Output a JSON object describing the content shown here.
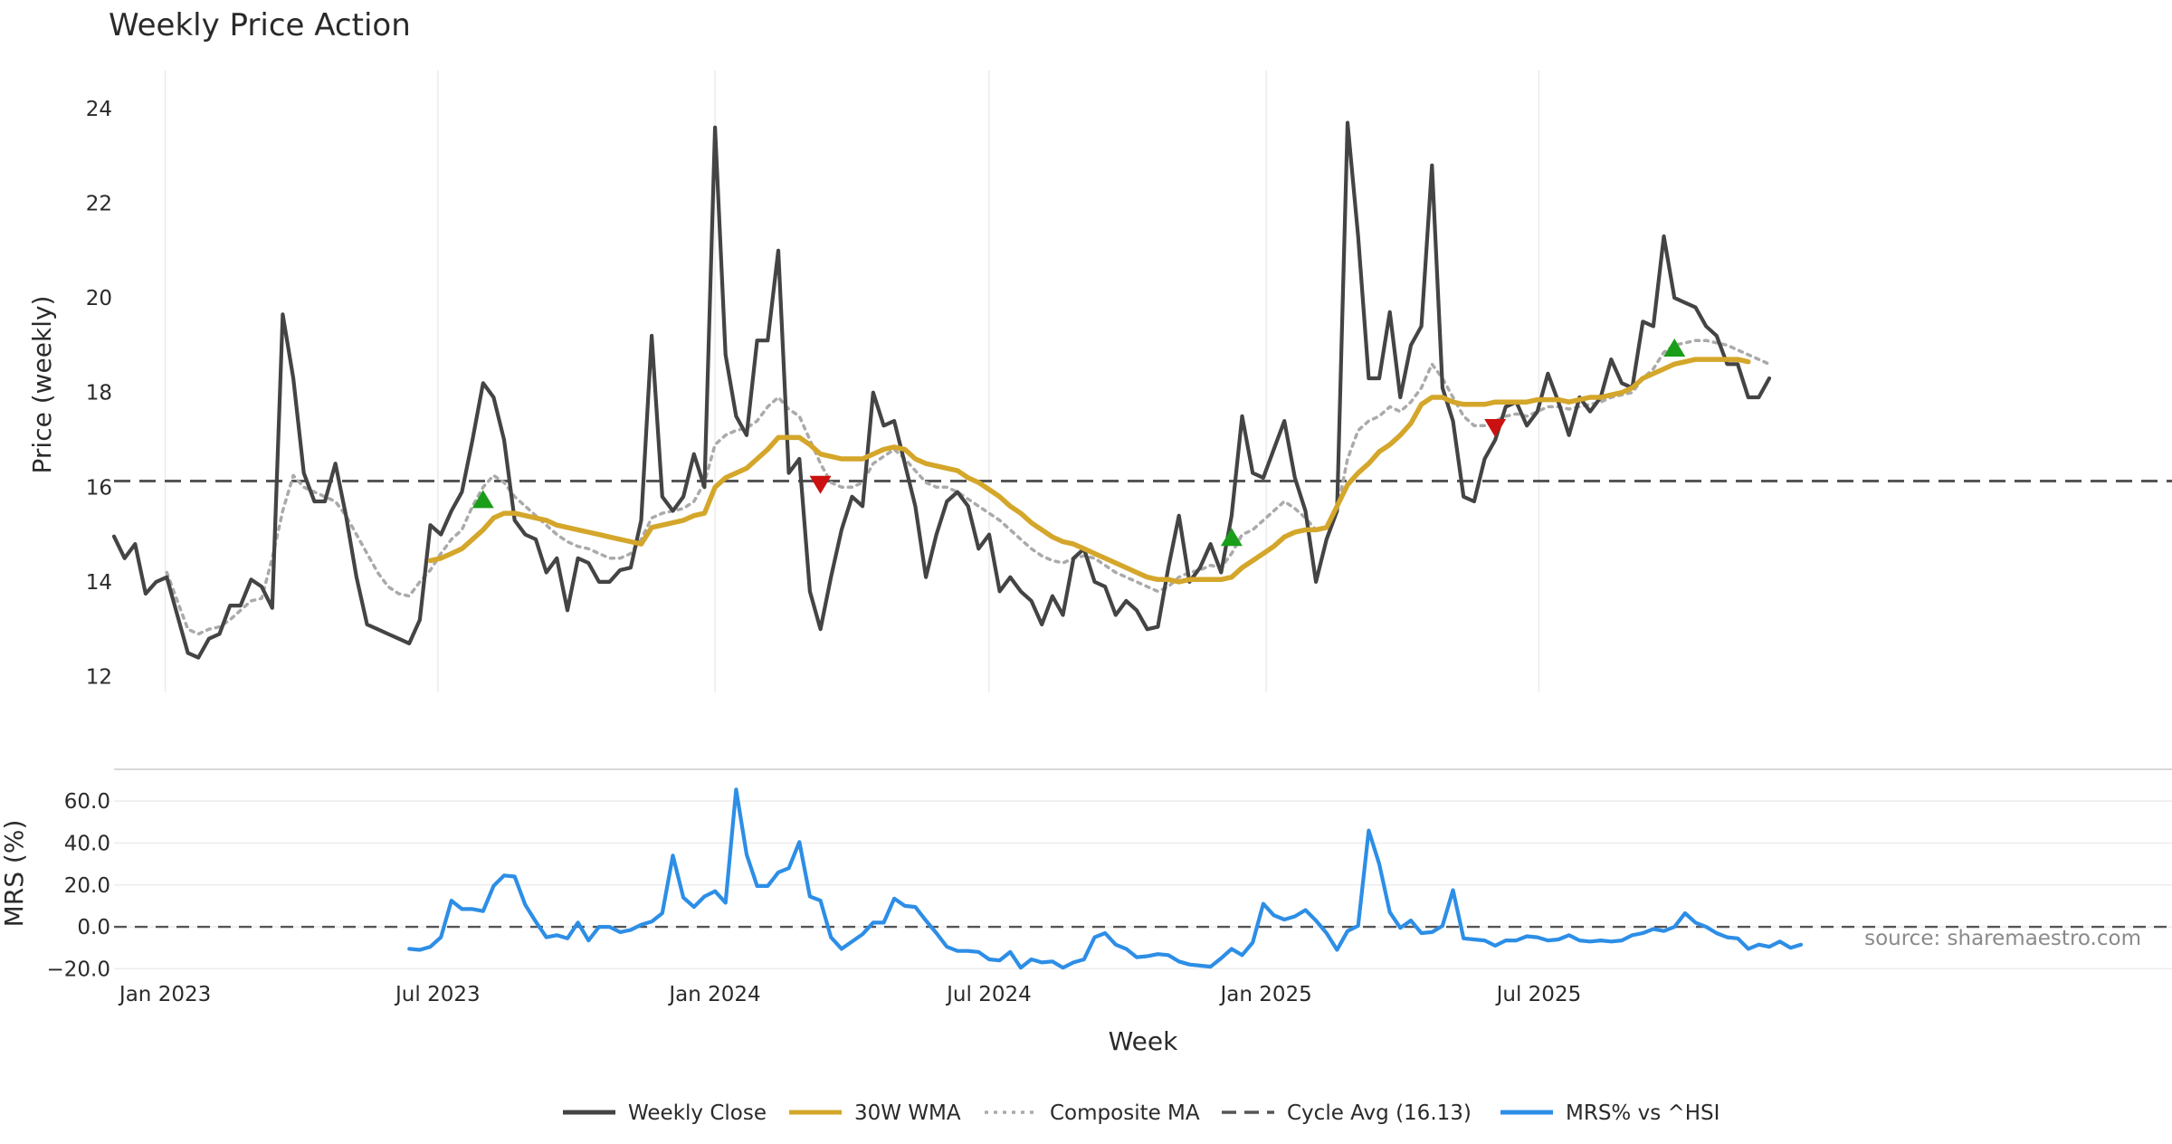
{
  "chart_data": {
    "type": "line",
    "title": "Weekly Price Action",
    "xlabel": "Week",
    "source_note": "source: sharemaestro.com",
    "x_start": "2022-11-28",
    "x_step_days": 7,
    "x_ticks": [
      {
        "date": "2023-01-01",
        "label": "Jan 2023"
      },
      {
        "date": "2023-07-01",
        "label": "Jul 2023"
      },
      {
        "date": "2024-01-01",
        "label": "Jan 2024"
      },
      {
        "date": "2024-07-01",
        "label": "Jul 2024"
      },
      {
        "date": "2025-01-01",
        "label": "Jan 2025"
      },
      {
        "date": "2025-07-01",
        "label": "Jul 2025"
      }
    ],
    "price_panel": {
      "ylabel": "Price (weekly)",
      "ylim": [
        11.8,
        24.4
      ],
      "yticks": [
        12,
        14,
        16,
        18,
        20,
        22,
        24
      ],
      "cycle_avg": 16.13,
      "series": [
        {
          "name": "Weekly Close",
          "color": "#444444",
          "style": "solid",
          "values": [
            14.96,
            14.5,
            14.8,
            13.75,
            14.0,
            14.1,
            13.3,
            12.5,
            12.4,
            12.8,
            12.9,
            13.5,
            13.5,
            14.05,
            13.9,
            13.45,
            19.65,
            18.3,
            16.3,
            15.7,
            15.7,
            16.5,
            15.4,
            14.1,
            13.1,
            13.0,
            12.9,
            12.8,
            12.7,
            13.2,
            15.2,
            15.0,
            15.5,
            15.9,
            17.0,
            18.2,
            17.9,
            17.0,
            15.3,
            15.0,
            14.9,
            14.2,
            14.5,
            13.4,
            14.5,
            14.4,
            14.0,
            14.0,
            14.25,
            14.3,
            15.3,
            19.2,
            15.8,
            15.5,
            15.8,
            16.7,
            16.0,
            23.6,
            18.8,
            17.5,
            17.1,
            19.1,
            19.1,
            21.0,
            16.3,
            16.6,
            13.8,
            13.0,
            14.1,
            15.1,
            15.8,
            15.6,
            18.0,
            17.3,
            17.4,
            16.5,
            15.6,
            14.1,
            15.0,
            15.7,
            15.9,
            15.6,
            14.7,
            15.0,
            13.8,
            14.1,
            13.8,
            13.6,
            13.1,
            13.7,
            13.3,
            14.5,
            14.7,
            14.0,
            13.9,
            13.3,
            13.6,
            13.4,
            13.0,
            13.05,
            14.3,
            15.4,
            14.0,
            14.3,
            14.8,
            14.2,
            15.4,
            17.5,
            16.3,
            16.2,
            16.8,
            17.4,
            16.2,
            15.5,
            14.0,
            14.9,
            15.5,
            23.7,
            21.3,
            18.3,
            18.3,
            19.7,
            17.9,
            19.0,
            19.4,
            22.8,
            18.1,
            17.4,
            15.8,
            15.7,
            16.6,
            17.0,
            17.7,
            17.8,
            17.3,
            17.6,
            18.4,
            17.8,
            17.1,
            17.9,
            17.6,
            17.9,
            18.7,
            18.2,
            18.1,
            19.5,
            19.4,
            21.3,
            20.0,
            19.9,
            19.8,
            19.4,
            19.2,
            18.6,
            18.6,
            17.9,
            17.9,
            18.3
          ]
        },
        {
          "name": "30W WMA",
          "color": "#d4a62a",
          "style": "solid",
          "values": [
            null,
            null,
            null,
            null,
            null,
            null,
            null,
            null,
            null,
            null,
            null,
            null,
            null,
            null,
            null,
            null,
            null,
            null,
            null,
            null,
            null,
            null,
            null,
            null,
            null,
            null,
            null,
            null,
            null,
            null,
            14.45,
            14.5,
            14.6,
            14.7,
            14.9,
            15.1,
            15.35,
            15.45,
            15.45,
            15.4,
            15.35,
            15.3,
            15.2,
            15.15,
            15.1,
            15.05,
            15.0,
            14.95,
            14.9,
            14.85,
            14.8,
            15.15,
            15.2,
            15.25,
            15.3,
            15.4,
            15.45,
            16.0,
            16.2,
            16.3,
            16.4,
            16.6,
            16.8,
            17.05,
            17.05,
            17.05,
            16.9,
            16.7,
            16.65,
            16.6,
            16.6,
            16.6,
            16.7,
            16.8,
            16.85,
            16.8,
            16.6,
            16.5,
            16.45,
            16.4,
            16.35,
            16.2,
            16.1,
            15.95,
            15.8,
            15.6,
            15.45,
            15.25,
            15.1,
            14.95,
            14.85,
            14.8,
            14.7,
            14.6,
            14.5,
            14.4,
            14.3,
            14.2,
            14.1,
            14.05,
            14.05,
            14.0,
            14.05,
            14.05,
            14.05,
            14.05,
            14.1,
            14.3,
            14.45,
            14.6,
            14.75,
            14.95,
            15.05,
            15.1,
            15.1,
            15.15,
            15.6,
            16.05,
            16.3,
            16.5,
            16.75,
            16.9,
            17.1,
            17.35,
            17.75,
            17.9,
            17.9,
            17.8,
            17.75,
            17.75,
            17.75,
            17.8,
            17.8,
            17.8,
            17.8,
            17.85,
            17.85,
            17.85,
            17.8,
            17.85,
            17.9,
            17.9,
            17.95,
            18.0,
            18.1,
            18.3,
            18.4,
            18.5,
            18.6,
            18.65,
            18.7,
            18.7,
            18.7,
            18.7,
            18.7,
            18.65
          ]
        },
        {
          "name": "Composite MA",
          "color": "#aaaaaa",
          "style": "dotted",
          "values": [
            null,
            null,
            null,
            null,
            null,
            14.2,
            13.6,
            13.0,
            12.9,
            13.0,
            13.05,
            13.2,
            13.4,
            13.6,
            13.65,
            14.5,
            15.5,
            16.25,
            16.0,
            15.9,
            15.8,
            15.7,
            15.4,
            15.0,
            14.6,
            14.2,
            13.9,
            13.75,
            13.7,
            14.0,
            14.25,
            14.6,
            14.9,
            15.1,
            15.6,
            16.0,
            16.25,
            16.1,
            15.8,
            15.6,
            15.4,
            15.2,
            15.0,
            14.85,
            14.75,
            14.7,
            14.6,
            14.5,
            14.5,
            14.6,
            14.9,
            15.35,
            15.45,
            15.5,
            15.55,
            15.7,
            16.1,
            16.9,
            17.1,
            17.2,
            17.25,
            17.4,
            17.7,
            17.9,
            17.65,
            17.5,
            17.0,
            16.5,
            16.1,
            16.0,
            16.0,
            16.1,
            16.5,
            16.65,
            16.8,
            16.6,
            16.35,
            16.1,
            16.0,
            16.0,
            15.9,
            15.75,
            15.6,
            15.45,
            15.3,
            15.1,
            14.9,
            14.7,
            14.55,
            14.45,
            14.4,
            14.5,
            14.55,
            14.5,
            14.35,
            14.2,
            14.1,
            14.0,
            13.9,
            13.8,
            13.9,
            14.1,
            14.2,
            14.25,
            14.35,
            14.3,
            14.6,
            15.0,
            15.1,
            15.3,
            15.5,
            15.7,
            15.55,
            15.35,
            15.1,
            15.15,
            15.5,
            16.6,
            17.2,
            17.4,
            17.5,
            17.7,
            17.6,
            17.8,
            18.1,
            18.6,
            18.3,
            17.9,
            17.5,
            17.3,
            17.3,
            17.4,
            17.5,
            17.55,
            17.5,
            17.6,
            17.7,
            17.7,
            17.65,
            17.7,
            17.75,
            17.8,
            17.9,
            17.95,
            18.0,
            18.3,
            18.5,
            18.85,
            19.0,
            19.05,
            19.1,
            19.1,
            19.05,
            19.0,
            18.9,
            18.8,
            18.7,
            18.6
          ]
        }
      ],
      "signals": [
        {
          "type": "buy",
          "week_index": 35,
          "value": 15.75,
          "color": "#1a9e1a"
        },
        {
          "type": "sell",
          "week_index": 67,
          "value": 16.05,
          "color": "#cc1111"
        },
        {
          "type": "buy",
          "week_index": 106,
          "value": 14.95,
          "color": "#1a9e1a"
        },
        {
          "type": "sell",
          "week_index": 131,
          "value": 17.25,
          "color": "#cc1111"
        },
        {
          "type": "buy",
          "week_index": 148,
          "value": 18.95,
          "color": "#1a9e1a"
        }
      ]
    },
    "mrs_panel": {
      "ylabel": "MRS (%)",
      "ylim": [
        -22,
        70
      ],
      "yticks": [
        60,
        40,
        20,
        0,
        -20
      ],
      "ytick_labels": [
        "60.0",
        "40.0",
        "20.0",
        "0.0",
        "−20.0"
      ],
      "series": {
        "name": "MRS% vs ^HSI",
        "color": "#2d8ee6",
        "values": [
          null,
          null,
          null,
          null,
          null,
          null,
          null,
          null,
          null,
          null,
          null,
          null,
          null,
          null,
          null,
          null,
          null,
          null,
          null,
          null,
          null,
          null,
          null,
          null,
          null,
          null,
          null,
          null,
          -10.5,
          -11,
          -9.5,
          -5,
          12.5,
          8.5,
          8.5,
          7.5,
          19.5,
          24.5,
          24,
          10.5,
          2.5,
          -5,
          -4,
          -5.5,
          2,
          -6.5,
          0,
          0,
          -2.5,
          -1.5,
          1,
          2.5,
          6.5,
          34,
          14,
          9.5,
          14.5,
          17,
          11.5,
          65.5,
          34.5,
          19.5,
          19.5,
          26,
          28,
          40.5,
          14.5,
          12.5,
          -5,
          -10.5,
          -7,
          -3.5,
          2,
          2,
          13.5,
          10,
          9.5,
          3,
          -3,
          -9.5,
          -11.5,
          -11.5,
          -12,
          -15.5,
          -16,
          -12,
          -19.5,
          -15.5,
          -17,
          -16.5,
          -19.5,
          -17,
          -15.5,
          -5,
          -3,
          -8.5,
          -10.5,
          -14.5,
          -14,
          -13,
          -13.5,
          -16.5,
          -18,
          -18.5,
          -19,
          -15,
          -10.5,
          -13.5,
          -7.5,
          11,
          5.5,
          3.5,
          5,
          8,
          3,
          -3,
          -11,
          -2,
          0.5,
          46,
          30,
          7,
          -0.5,
          3,
          -3,
          -2.5,
          0.5,
          17.5,
          -5.5,
          -6,
          -6.5,
          -9,
          -6.5,
          -6.5,
          -4.5,
          -5,
          -6.5,
          -6,
          -4,
          -6.5,
          -7,
          -6.5,
          -7,
          -6.5,
          -4,
          -3,
          -1,
          -2,
          0,
          6.5,
          2,
          0,
          -3,
          -5,
          -5.5,
          -10.5,
          -8.5,
          -9.5,
          -7,
          -10,
          -8.5
        ]
      }
    },
    "legend": [
      {
        "label": "Weekly Close",
        "color": "#444444",
        "style": "solid"
      },
      {
        "label": "30W WMA",
        "color": "#d4a62a",
        "style": "solid"
      },
      {
        "label": "Composite MA",
        "color": "#aaaaaa",
        "style": "dotted"
      },
      {
        "label": "Cycle Avg (16.13)",
        "color": "#555555",
        "style": "dashed"
      },
      {
        "label": "MRS% vs ^HSI",
        "color": "#2d8ee6",
        "style": "solid"
      }
    ]
  }
}
